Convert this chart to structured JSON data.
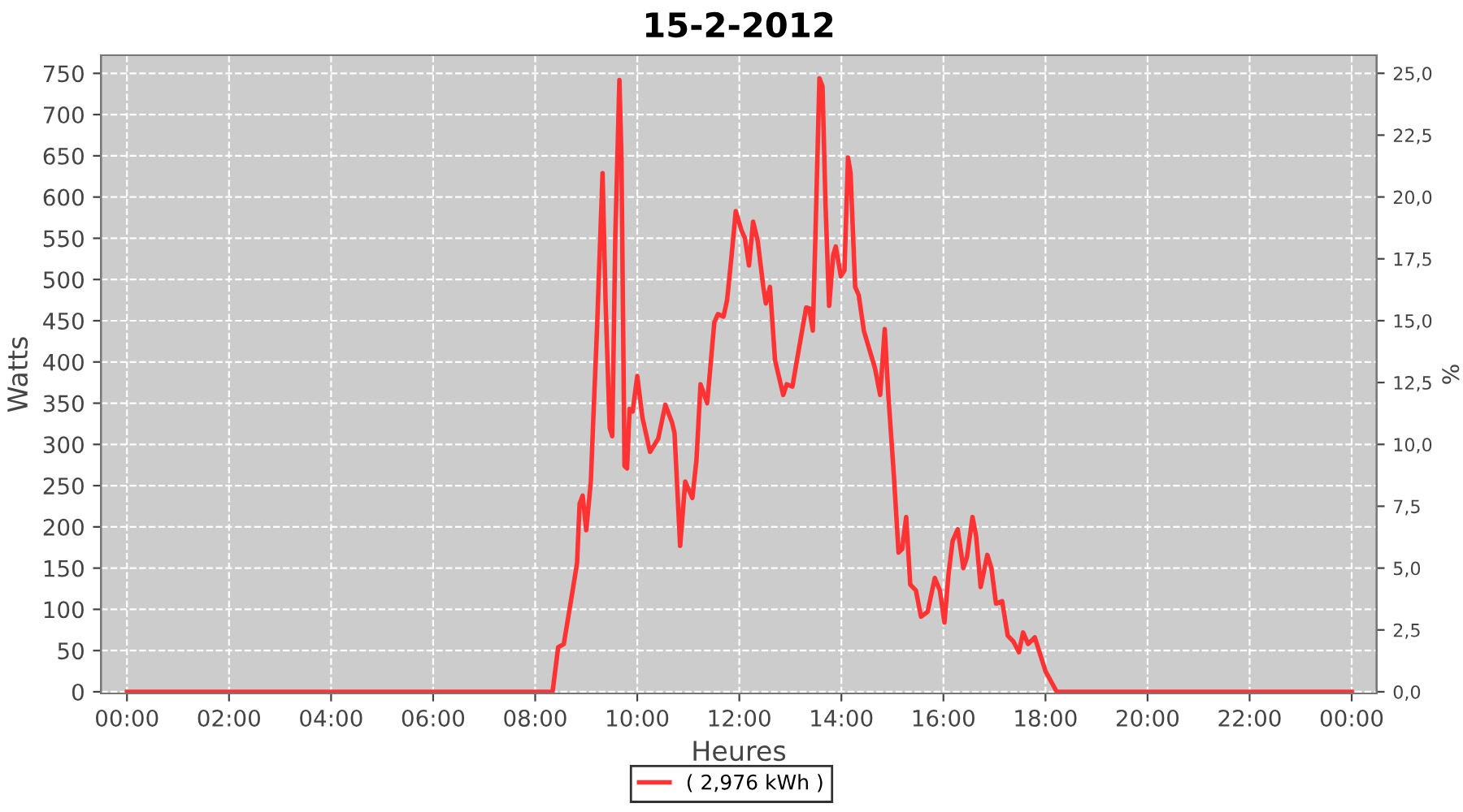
{
  "chart_data": {
    "type": "line",
    "title": "15-2-2012",
    "xlabel": "Heures",
    "ylabel": "Watts",
    "y2label": "%",
    "series": [
      {
        "name": "( 2,976 kWh )",
        "color": "#ff3333",
        "x": [
          0,
          8.34,
          8.45,
          8.56,
          8.71,
          8.82,
          8.87,
          8.93,
          9.0,
          9.09,
          9.14,
          9.21,
          9.32,
          9.38,
          9.46,
          9.51,
          9.57,
          9.65,
          9.69,
          9.75,
          9.8,
          9.85,
          9.91,
          10.0,
          10.1,
          10.25,
          10.41,
          10.55,
          10.68,
          10.73,
          10.84,
          10.94,
          11.08,
          11.16,
          11.24,
          11.37,
          11.51,
          11.58,
          11.69,
          11.76,
          11.85,
          11.93,
          12.04,
          12.11,
          12.19,
          12.27,
          12.36,
          12.47,
          12.52,
          12.6,
          12.7,
          12.86,
          12.93,
          13.04,
          13.12,
          13.23,
          13.31,
          13.37,
          13.44,
          13.49,
          13.57,
          13.63,
          13.69,
          13.76,
          13.84,
          13.89,
          13.99,
          14.06,
          14.13,
          14.18,
          14.27,
          14.34,
          14.44,
          14.66,
          14.76,
          14.85,
          14.92,
          15.03,
          15.12,
          15.19,
          15.27,
          15.35,
          15.46,
          15.56,
          15.69,
          15.83,
          15.93,
          16.02,
          16.1,
          16.18,
          16.28,
          16.39,
          16.46,
          16.57,
          16.64,
          16.73,
          16.86,
          16.94,
          17.03,
          17.15,
          17.26,
          17.37,
          17.48,
          17.56,
          17.66,
          17.79,
          18.0,
          18.22,
          24.0
        ],
        "values": [
          0,
          0,
          54,
          58,
          114,
          156,
          228,
          238,
          196,
          255,
          333,
          438,
          629,
          471,
          320,
          310,
          553,
          742,
          648,
          274,
          271,
          343,
          340,
          383,
          333,
          291,
          307,
          348,
          327,
          314,
          177,
          255,
          235,
          281,
          373,
          350,
          448,
          458,
          455,
          475,
          530,
          583,
          560,
          550,
          517,
          570,
          547,
          491,
          471,
          491,
          402,
          360,
          373,
          370,
          399,
          438,
          466,
          465,
          438,
          550,
          744,
          734,
          589,
          468,
          530,
          540,
          504,
          511,
          648,
          629,
          491,
          481,
          438,
          392,
          360,
          440,
          360,
          261,
          169,
          173,
          212,
          130,
          123,
          91,
          97,
          138,
          123,
          84,
          143,
          183,
          197,
          150,
          163,
          212,
          189,
          127,
          166,
          150,
          107,
          110,
          68,
          61,
          48,
          72,
          58,
          66,
          25,
          0,
          0
        ]
      }
    ],
    "xlim": [
      -0.51,
      24.49
    ],
    "xticks": [
      {
        "value": 0,
        "label": "00:00"
      },
      {
        "value": 2,
        "label": "02:00"
      },
      {
        "value": 4,
        "label": "04:00"
      },
      {
        "value": 6,
        "label": "06:00"
      },
      {
        "value": 8,
        "label": "08:00"
      },
      {
        "value": 10,
        "label": "10:00"
      },
      {
        "value": 12,
        "label": "12:00"
      },
      {
        "value": 14,
        "label": "14:00"
      },
      {
        "value": 16,
        "label": "16:00"
      },
      {
        "value": 18,
        "label": "18:00"
      },
      {
        "value": 20,
        "label": "20:00"
      },
      {
        "value": 22,
        "label": "22:00"
      },
      {
        "value": 24,
        "label": "00:00"
      }
    ],
    "ylim": [
      -2,
      772
    ],
    "yticks": [
      0,
      50,
      100,
      150,
      200,
      250,
      300,
      350,
      400,
      450,
      500,
      550,
      600,
      650,
      700,
      750
    ],
    "y2lim": [
      -0.067,
      25.73
    ],
    "y2ticks": [
      {
        "value": 0,
        "label": "0,0"
      },
      {
        "value": 2.5,
        "label": "2,5"
      },
      {
        "value": 5,
        "label": "5,0"
      },
      {
        "value": 7.5,
        "label": "7,5"
      },
      {
        "value": 10,
        "label": "10,0"
      },
      {
        "value": 12.5,
        "label": "12,5"
      },
      {
        "value": 15,
        "label": "15,0"
      },
      {
        "value": 17.5,
        "label": "17,5"
      },
      {
        "value": 20,
        "label": "20,0"
      },
      {
        "value": 22.5,
        "label": "22,5"
      },
      {
        "value": 25,
        "label": "25,0"
      }
    ],
    "grid": true,
    "legend": "bottom",
    "marker": "none",
    "line_style": "solid"
  }
}
